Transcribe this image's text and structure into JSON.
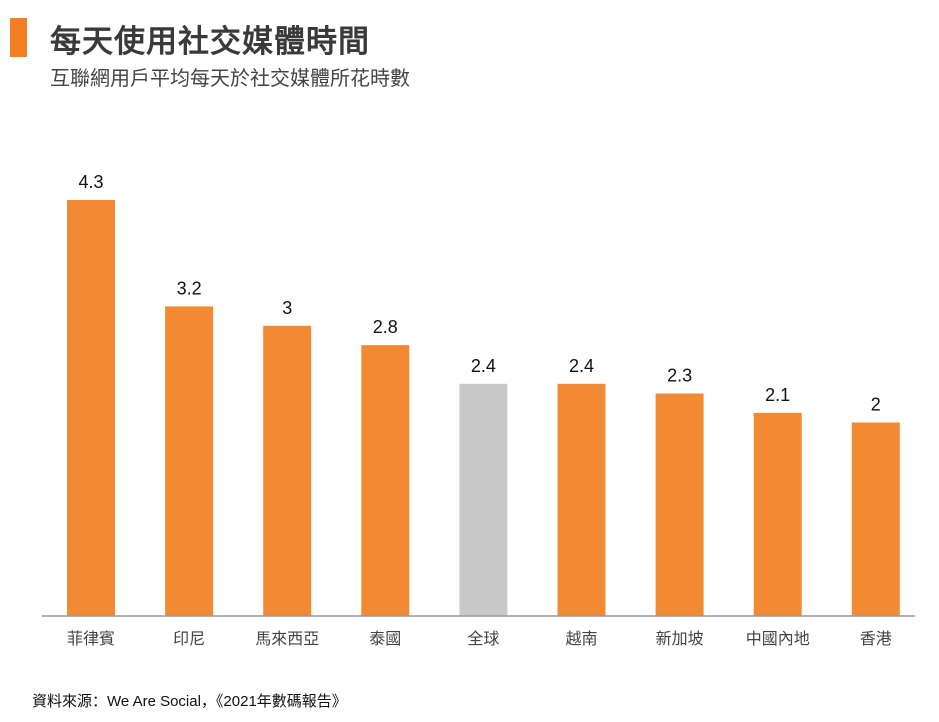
{
  "header": {
    "title": "每天使用社交媒體時間",
    "subtitle": "互聯網用戶平均每天於社交媒體所花時數"
  },
  "footer": {
    "source": "資料來源：We Are Social，《2021年數碼報告》"
  },
  "colors": {
    "accent": "#f28022",
    "bar": "#f28a33",
    "highlight": "#c8c8c8",
    "axis": "#999999"
  },
  "chart_data": {
    "type": "bar",
    "title": "每天使用社交媒體時間",
    "subtitle": "互聯網用戶平均每天於社交媒體所花時數",
    "categories": [
      "菲律賓",
      "印尼",
      "馬來西亞",
      "泰國",
      "全球",
      "越南",
      "新加坡",
      "中國內地",
      "香港"
    ],
    "values": [
      4.3,
      3.2,
      3,
      2.8,
      2.4,
      2.4,
      2.3,
      2.1,
      2
    ],
    "data_labels": [
      "4.3",
      "3.2",
      "3",
      "2.8",
      "2.4",
      "2.4",
      "2.3",
      "2.1",
      "2"
    ],
    "highlighted_category": "全球",
    "xlabel": "",
    "ylabel": "",
    "ylim": [
      0,
      4.3
    ],
    "grid": false,
    "legend": "none"
  }
}
